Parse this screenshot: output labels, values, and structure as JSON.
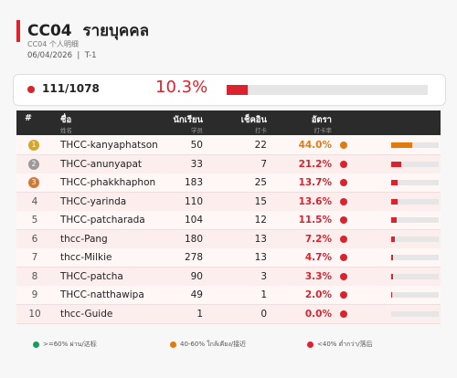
{
  "header": {
    "title": "CC04",
    "title_thai": "รายบุคคล",
    "subtitle": "CC04 个人明细",
    "date": "06/04/2026",
    "separator": "|",
    "period": "T-1"
  },
  "summary": {
    "count": "111/1078",
    "rate": 10.3,
    "rate_label": "10.3%"
  },
  "table": {
    "columns": [
      {
        "label": "#",
        "sub": null
      },
      {
        "label": "ชื่อ",
        "sub": "姓名"
      },
      {
        "label": "นักเรียน",
        "sub": "学员"
      },
      {
        "label": "เช็คอิน",
        "sub": "打卡"
      },
      {
        "label": "อัตรา",
        "sub": "打卡率"
      }
    ],
    "rows": [
      {
        "rank": 1,
        "name": "THCC-kanyaphatson",
        "students": 50,
        "checkins": 22,
        "rate": 44.0,
        "rate_label": "44.0%",
        "color": "#e07b12"
      },
      {
        "rank": 2,
        "name": "THCC-anunyapat",
        "students": 33,
        "checkins": 7,
        "rate": 21.2,
        "rate_label": "21.2%",
        "color": "#d9232e"
      },
      {
        "rank": 3,
        "name": "THCC-phakkhaphon",
        "students": 183,
        "checkins": 25,
        "rate": 13.7,
        "rate_label": "13.7%",
        "color": "#d9232e"
      },
      {
        "rank": 4,
        "name": "THCC-yarinda",
        "students": 110,
        "checkins": 15,
        "rate": 13.6,
        "rate_label": "13.6%",
        "color": "#d9232e"
      },
      {
        "rank": 5,
        "name": "THCC-patcharada",
        "students": 104,
        "checkins": 12,
        "rate": 11.5,
        "rate_label": "11.5%",
        "color": "#d9232e"
      },
      {
        "rank": 6,
        "name": "thcc-Pang",
        "students": 180,
        "checkins": 13,
        "rate": 7.2,
        "rate_label": "7.2%",
        "color": "#d9232e"
      },
      {
        "rank": 7,
        "name": "thcc-Milkie",
        "students": 278,
        "checkins": 13,
        "rate": 4.7,
        "rate_label": "4.7%",
        "color": "#d9232e"
      },
      {
        "rank": 8,
        "name": "THCC-patcha",
        "students": 90,
        "checkins": 3,
        "rate": 3.3,
        "rate_label": "3.3%",
        "color": "#d9232e"
      },
      {
        "rank": 9,
        "name": "THCC-natthawipa",
        "students": 49,
        "checkins": 1,
        "rate": 2.0,
        "rate_label": "2.0%",
        "color": "#d9232e"
      },
      {
        "rank": 10,
        "name": "thcc-Guide",
        "students": 1,
        "checkins": 0,
        "rate": 0.0,
        "rate_label": "0.0%",
        "color": "#d9232e"
      }
    ]
  },
  "legend": [
    {
      "label": ">=60% ผ่าน/达标",
      "color": "#1a9b5c"
    },
    {
      "label": "40-60% ใกล้เคียง/接近",
      "color": "#e07b12"
    },
    {
      "label": "<40% ต่ำกว่า/落后",
      "color": "#d9232e"
    }
  ]
}
